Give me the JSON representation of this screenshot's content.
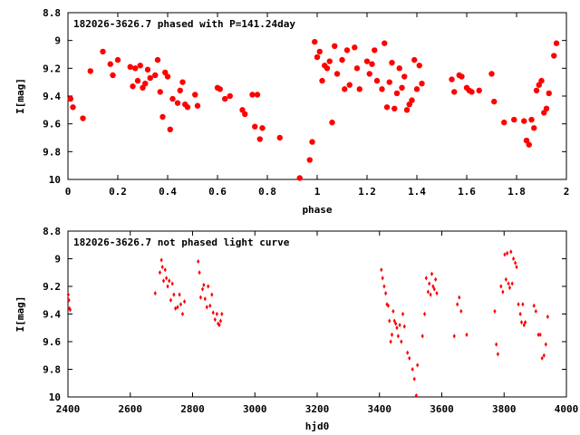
{
  "chart_data": [
    {
      "type": "scatter",
      "title": "182026-3626.7 phased with P=141.24day",
      "xlabel": "phase",
      "ylabel": "I[mag]",
      "xlim": [
        0,
        2
      ],
      "ylim": [
        10,
        8.8
      ],
      "y_inverted": true,
      "xticks": [
        "0",
        "0.2",
        "0.4",
        "0.6",
        "0.8",
        "1",
        "1.2",
        "1.4",
        "1.6",
        "1.8",
        "2"
      ],
      "yticks": [
        "8.8",
        "9",
        "9.2",
        "9.4",
        "9.6",
        "9.8",
        "10"
      ],
      "marker": "filled-circle-large",
      "color": "#ff0000",
      "series": [
        {
          "x": [
            0.01,
            0.02,
            0.06,
            0.09,
            0.14,
            0.17,
            0.18,
            0.2,
            0.25,
            0.26,
            0.27,
            0.28,
            0.29,
            0.3,
            0.31,
            0.32,
            0.33,
            0.35,
            0.36,
            0.37,
            0.38,
            0.39,
            0.4,
            0.41,
            0.42,
            0.44,
            0.45,
            0.46,
            0.47,
            0.48,
            0.51,
            0.52,
            0.6,
            0.61,
            0.63,
            0.65,
            0.7,
            0.71,
            0.74,
            0.75,
            0.76,
            0.77,
            0.78,
            0.85,
            0.93,
            0.97,
            0.98,
            0.99,
            1.0,
            1.01,
            1.02,
            1.03,
            1.04,
            1.05,
            1.06,
            1.07,
            1.08,
            1.1,
            1.11,
            1.12,
            1.13,
            1.15,
            1.16,
            1.17,
            1.2,
            1.21,
            1.22,
            1.23,
            1.24,
            1.26,
            1.27,
            1.28,
            1.29,
            1.3,
            1.31,
            1.32,
            1.33,
            1.34,
            1.35,
            1.36,
            1.37,
            1.38,
            1.39,
            1.4,
            1.41,
            1.42,
            1.54,
            1.55,
            1.57,
            1.58,
            1.6,
            1.61,
            1.62,
            1.65,
            1.7,
            1.71,
            1.75,
            1.79,
            1.83,
            1.84,
            1.85,
            1.86,
            1.87,
            1.88,
            1.89,
            1.9,
            1.91,
            1.92,
            1.93,
            1.95,
            1.96
          ],
          "y": [
            9.42,
            9.48,
            9.56,
            9.22,
            9.08,
            9.17,
            9.25,
            9.14,
            9.19,
            9.33,
            9.2,
            9.29,
            9.18,
            9.34,
            9.31,
            9.21,
            9.27,
            9.25,
            9.14,
            9.37,
            9.55,
            9.23,
            9.26,
            9.64,
            9.42,
            9.45,
            9.36,
            9.3,
            9.46,
            9.48,
            9.39,
            9.47,
            9.34,
            9.35,
            9.42,
            9.4,
            9.5,
            9.53,
            9.39,
            9.62,
            9.39,
            9.71,
            9.63,
            9.7,
            9.99,
            9.86,
            9.73,
            9.01,
            9.12,
            9.08,
            9.29,
            9.18,
            9.2,
            9.15,
            9.59,
            9.04,
            9.24,
            9.14,
            9.35,
            9.07,
            9.32,
            9.05,
            9.2,
            9.35,
            9.15,
            9.24,
            9.17,
            9.07,
            9.29,
            9.35,
            9.02,
            9.48,
            9.3,
            9.16,
            9.49,
            9.38,
            9.2,
            9.34,
            9.26,
            9.5,
            9.46,
            9.43,
            9.14,
            9.35,
            9.18,
            9.31,
            9.28,
            9.37,
            9.25,
            9.26,
            9.34,
            9.36,
            9.37,
            9.36,
            9.24,
            9.44,
            9.59,
            9.57,
            9.58,
            9.72,
            9.75,
            9.57,
            9.63,
            9.36,
            9.32,
            9.29,
            9.52,
            9.49,
            9.38,
            9.11,
            9.02
          ]
        }
      ]
    },
    {
      "type": "scatter",
      "title": "182026-3626.7 not phased light curve",
      "xlabel": "hjd0",
      "ylabel": "I[mag]",
      "xlim": [
        2400,
        4000
      ],
      "ylim": [
        10,
        8.8
      ],
      "y_inverted": true,
      "xticks": [
        "2400",
        "2600",
        "2800",
        "3000",
        "3200",
        "3400",
        "3600",
        "3800",
        "4000"
      ],
      "yticks": [
        "8.8",
        "9",
        "9.2",
        "9.4",
        "9.6",
        "9.8",
        "10"
      ],
      "marker": "filled-diamond-small",
      "color": "#ff0000",
      "series": [
        {
          "x": [
            2401,
            2403,
            2405,
            2407,
            2680,
            2695,
            2700,
            2703,
            2707,
            2712,
            2716,
            2720,
            2725,
            2730,
            2735,
            2740,
            2745,
            2752,
            2758,
            2762,
            2768,
            2774,
            2818,
            2822,
            2826,
            2832,
            2836,
            2840,
            2846,
            2850,
            2856,
            2862,
            2866,
            2872,
            2878,
            2882,
            2886,
            2890,
            2894,
            3406,
            3410,
            3415,
            3420,
            3424,
            3428,
            3432,
            3436,
            3440,
            3444,
            3448,
            3452,
            3456,
            3460,
            3465,
            3470,
            3475,
            3480,
            3490,
            3496,
            3506,
            3512,
            3518,
            3522,
            3538,
            3545,
            3550,
            3556,
            3560,
            3564,
            3568,
            3572,
            3576,
            3580,
            3584,
            3640,
            3650,
            3656,
            3662,
            3680,
            3770,
            3775,
            3780,
            3790,
            3796,
            3802,
            3806,
            3810,
            3814,
            3818,
            3822,
            3826,
            3830,
            3836,
            3840,
            3846,
            3852,
            3856,
            3860,
            3864,
            3868,
            3896,
            3902,
            3910,
            3916,
            3922,
            3928,
            3934,
            3940
          ],
          "y": [
            9.26,
            9.3,
            9.36,
            9.37,
            9.25,
            9.1,
            9.01,
            9.06,
            9.16,
            9.08,
            9.14,
            9.2,
            9.16,
            9.3,
            9.18,
            9.26,
            9.36,
            9.35,
            9.26,
            9.33,
            9.4,
            9.31,
            9.02,
            9.1,
            9.28,
            9.22,
            9.19,
            9.29,
            9.35,
            9.2,
            9.34,
            9.26,
            9.39,
            9.44,
            9.4,
            9.47,
            9.48,
            9.45,
            9.4,
            9.08,
            9.14,
            9.2,
            9.25,
            9.33,
            9.34,
            9.45,
            9.6,
            9.55,
            9.38,
            9.45,
            9.47,
            9.5,
            9.56,
            9.48,
            9.6,
            9.4,
            9.49,
            9.68,
            9.72,
            9.8,
            9.87,
            9.99,
            9.77,
            9.56,
            9.4,
            9.14,
            9.24,
            9.18,
            9.26,
            9.11,
            9.2,
            9.22,
            9.15,
            9.25,
            9.56,
            9.33,
            9.28,
            9.38,
            9.55,
            9.38,
            9.62,
            9.69,
            9.2,
            9.24,
            8.97,
            9.15,
            8.96,
            9.18,
            9.21,
            8.95,
            9.18,
            9.0,
            9.03,
            9.06,
            9.33,
            9.4,
            9.46,
            9.33,
            9.48,
            9.46,
            9.34,
            9.38,
            9.55,
            9.55,
            9.72,
            9.7,
            9.62,
            9.42
          ]
        }
      ]
    }
  ]
}
